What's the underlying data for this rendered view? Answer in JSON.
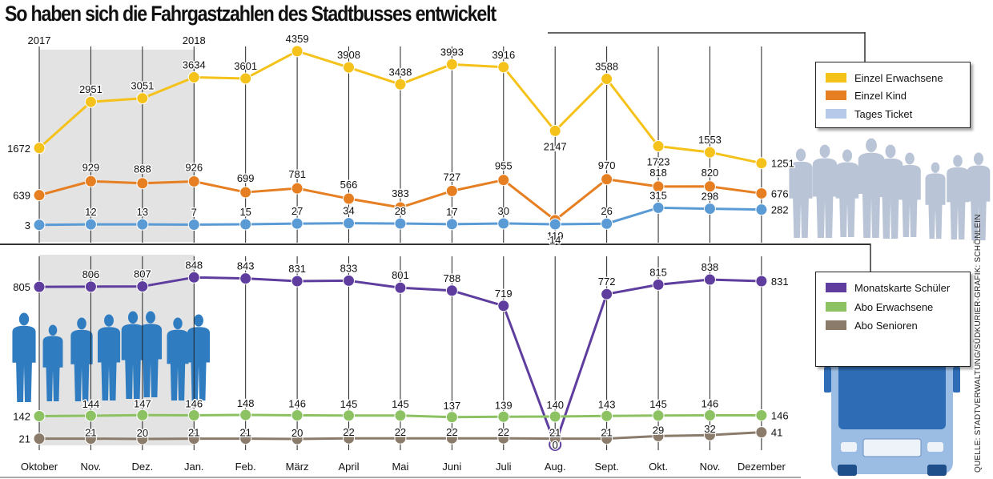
{
  "title": "So haben sich die Fahrgastzahlen des Stadtbusses entwickelt",
  "source": "QUELLE: STADTVERWALTUNG/SÜDKURIER-GRAFIK: SCHÖNLEIN",
  "year_labels": [
    {
      "label": "2017",
      "index": 0
    },
    {
      "label": "2018",
      "index": 3
    }
  ],
  "colors": {
    "einzel_erwachsene": "#f5c21b",
    "einzel_kind": "#e67e22",
    "tages_ticket": "#5b9bd5",
    "monatskarte": "#5e3d9e",
    "abo_erwachsene": "#8dc263",
    "abo_senioren": "#8b7b6b",
    "shade": "#e3e3e3",
    "silhouette_grey": "#b9c4d6",
    "silhouette_blue": "#2f7cc1",
    "bus_body": "#9bbce3",
    "bus_front": "#2e6db6"
  },
  "chart_data": [
    {
      "type": "line",
      "x": [
        "Oktober",
        "Nov.",
        "Dez.",
        "Jan.",
        "Feb.",
        "März",
        "April",
        "Mai",
        "Juni",
        "Juli",
        "Aug.",
        "Sept.",
        "Okt.",
        "Nov.",
        "Dezember"
      ],
      "shaded_categories": [
        "Oktober",
        "Nov.",
        "Dez.",
        "Jan."
      ],
      "series": [
        {
          "name": "Einzel Erwachsene",
          "values": [
            1672,
            2951,
            3051,
            3634,
            3601,
            4359,
            3908,
            3438,
            3993,
            3916,
            2147,
            3588,
            1723,
            1553,
            1251
          ]
        },
        {
          "name": "Einzel Kind",
          "values": [
            639,
            929,
            888,
            926,
            699,
            781,
            566,
            383,
            727,
            955,
            119,
            970,
            818,
            820,
            676
          ]
        },
        {
          "name": "Tages Ticket",
          "values": [
            3,
            12,
            13,
            7,
            15,
            27,
            34,
            28,
            17,
            30,
            14,
            26,
            315,
            298,
            282
          ]
        }
      ],
      "legend": "top-right"
    },
    {
      "type": "line",
      "x": [
        "Oktober",
        "Nov.",
        "Dez.",
        "Jan.",
        "Feb.",
        "März",
        "April",
        "Mai",
        "Juni",
        "Juli",
        "Aug.",
        "Sept.",
        "Okt.",
        "Nov.",
        "Dezember"
      ],
      "shaded_categories": [
        "Oktober",
        "Nov.",
        "Dez.",
        "Jan."
      ],
      "series": [
        {
          "name": "Monatskarte Schüler",
          "values": [
            805,
            806,
            807,
            848,
            843,
            831,
            833,
            801,
            788,
            719,
            0,
            772,
            815,
            838,
            831
          ]
        },
        {
          "name": "Abo Erwachsene",
          "values": [
            142,
            144,
            147,
            146,
            148,
            146,
            145,
            145,
            137,
            139,
            140,
            143,
            145,
            146,
            146
          ]
        },
        {
          "name": "Abo Senioren",
          "values": [
            21,
            21,
            20,
            21,
            21,
            20,
            22,
            22,
            22,
            22,
            21,
            21,
            29,
            32,
            41
          ]
        }
      ],
      "legend": "right"
    }
  ]
}
